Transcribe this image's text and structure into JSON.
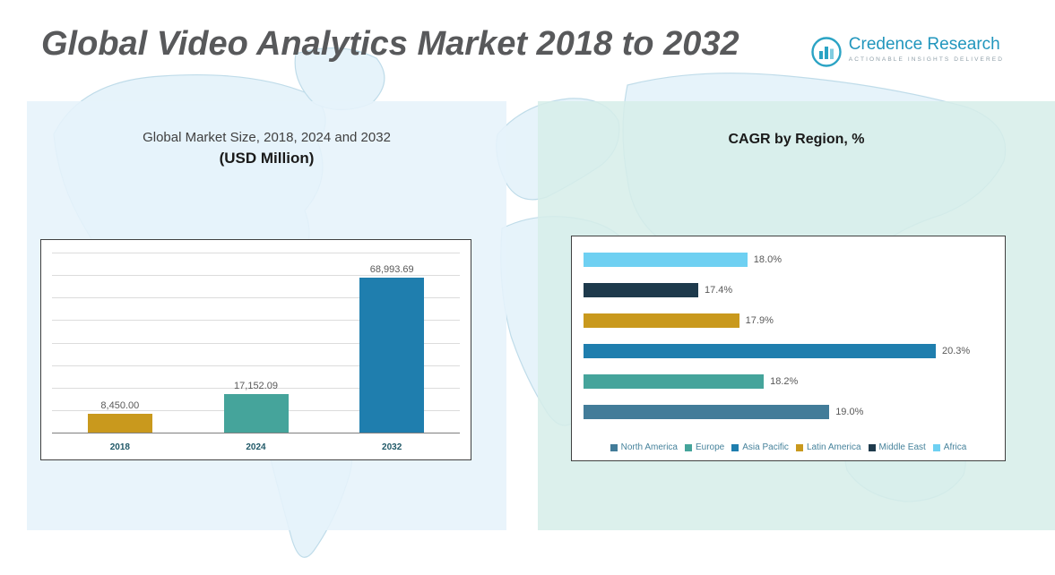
{
  "header": {
    "title": "Global Video Analytics Market 2018 to 2032"
  },
  "logo": {
    "name": "Credence Research",
    "tagline": "Actionable Insights Delivered"
  },
  "colors": {
    "gold": "#C9991D",
    "teal": "#45A49B",
    "blue": "#1F7EAE",
    "light_blue": "#6ED0F2",
    "dark_navy": "#1E3A4C",
    "steel_blue": "#427C99",
    "logo_teal": "#2196BD",
    "title_gray": "#58595B"
  },
  "chart_data": [
    {
      "type": "bar",
      "title_line1": "Global Market Size, 2018, 2024 and 2032",
      "title_line2": "(USD Million)",
      "categories": [
        "2018",
        "2024",
        "2032"
      ],
      "values": [
        8450.0,
        17152.09,
        68993.69
      ],
      "value_labels": [
        "8,450.00",
        "17,152.09",
        "68,993.69"
      ],
      "bar_colors": [
        "#C9991D",
        "#45A49B",
        "#1F7EAE"
      ],
      "ylim": [
        0,
        80000
      ],
      "grid": true,
      "gridline_segments": 8,
      "legend_position": "none"
    },
    {
      "type": "bar-horizontal",
      "title": "CAGR by Region, %",
      "categories": [
        "Africa",
        "Middle East",
        "Latin America",
        "Asia Pacific",
        "Europe",
        "North America"
      ],
      "values": [
        18.0,
        17.4,
        17.9,
        20.3,
        18.2,
        19.0
      ],
      "value_labels": [
        "18.0%",
        "17.4%",
        "17.9%",
        "20.3%",
        "18.2%",
        "19.0%"
      ],
      "bar_colors": [
        "#6ED0F2",
        "#1E3A4C",
        "#C9991D",
        "#1F7EAE",
        "#45A49B",
        "#427C99"
      ],
      "xlim": [
        16,
        21
      ],
      "grid": false,
      "legend_position": "bottom",
      "legend": [
        {
          "label": "North America",
          "color": "#427C99"
        },
        {
          "label": "Europe",
          "color": "#45A49B"
        },
        {
          "label": "Asia Pacific",
          "color": "#1F7EAE"
        },
        {
          "label": "Latin America",
          "color": "#C9991D"
        },
        {
          "label": "Middle East",
          "color": "#1E3A4C"
        },
        {
          "label": "Africa",
          "color": "#6ED0F2"
        }
      ]
    }
  ]
}
